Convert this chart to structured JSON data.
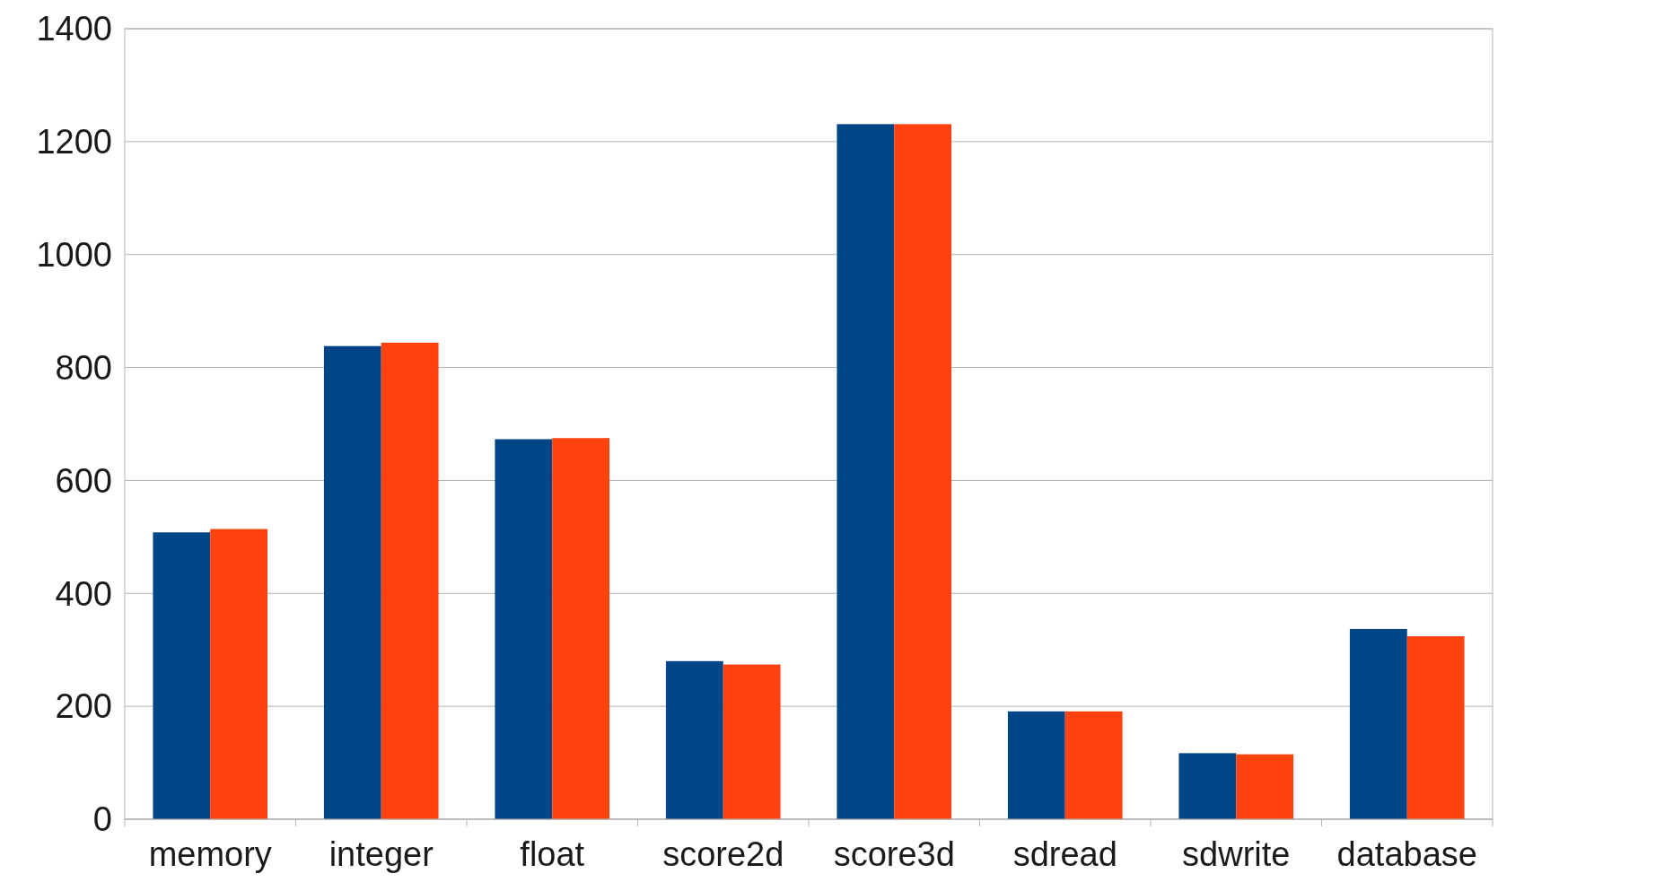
{
  "chart_data": {
    "type": "bar",
    "categories": [
      "memory",
      "integer",
      "float",
      "score2d",
      "score3d",
      "sdread",
      "sdwrite",
      "database"
    ],
    "series": [
      {
        "color": "#004586",
        "values": [
          508,
          838,
          673,
          280,
          1231,
          191,
          117,
          337
        ]
      },
      {
        "color": "#ff420e",
        "values": [
          514,
          844,
          675,
          274,
          1231,
          191,
          115,
          324
        ]
      }
    ],
    "ylim": [
      0,
      1400
    ],
    "yticks": [
      0,
      200,
      400,
      600,
      800,
      1000,
      1200,
      1400
    ],
    "grid": "y"
  }
}
